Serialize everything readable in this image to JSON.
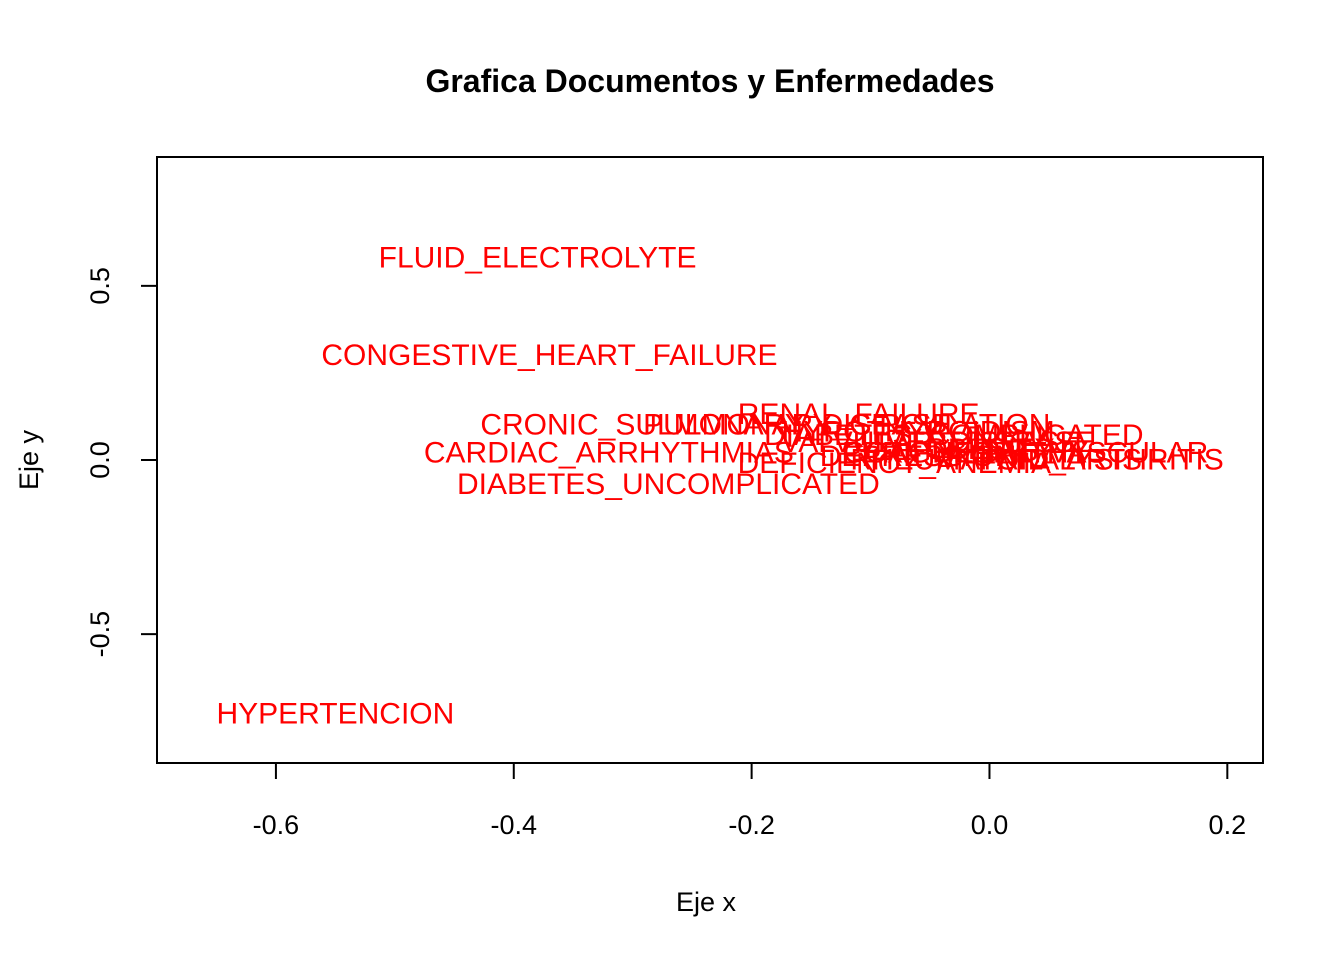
{
  "chart_data": {
    "type": "scatter",
    "title": "Grafica Documentos y Enfermedades",
    "xlabel": "Eje x",
    "ylabel": "Eje y",
    "xlim": [
      -0.7,
      0.23
    ],
    "ylim": [
      -0.87,
      0.87
    ],
    "xticks": [
      -0.6,
      -0.4,
      -0.2,
      0.0,
      0.2
    ],
    "xtick_labels": [
      "-0.6",
      "-0.4",
      "-0.2",
      "0.0",
      "0.2"
    ],
    "yticks": [
      -0.5,
      0.0,
      0.5
    ],
    "ytick_labels": [
      "-0.5",
      "0.0",
      "0.5"
    ],
    "grid": false,
    "label_color": "#ff0000",
    "points": [
      {
        "label": "FLUID_ELECTROLYTE",
        "x": -0.38,
        "y": 0.58
      },
      {
        "label": "CONGESTIVE_HEART_FAILURE",
        "x": -0.37,
        "y": 0.3
      },
      {
        "label": "CRONIC_SULMONARY_DISEASE",
        "x": -0.23,
        "y": 0.1
      },
      {
        "label": "PULMONARY_CIRCULATION",
        "x": -0.12,
        "y": 0.1
      },
      {
        "label": "RENAL_FAILURE",
        "x": -0.11,
        "y": 0.13
      },
      {
        "label": "HYPOTHYROIDISM",
        "x": -0.06,
        "y": 0.08
      },
      {
        "label": "DIABETES_COMPLICATED",
        "x": -0.03,
        "y": 0.07
      },
      {
        "label": "LIVER_DISEASE",
        "x": -0.01,
        "y": 0.05
      },
      {
        "label": "VALVULAR_DISEASE",
        "x": -0.05,
        "y": 0.05
      },
      {
        "label": "PERIPHERAL_VASCULAR",
        "x": 0.03,
        "y": 0.02
      },
      {
        "label": "OBESITY",
        "x": 0.0,
        "y": 0.03
      },
      {
        "label": "COAGULOPATHY",
        "x": -0.02,
        "y": 0.02
      },
      {
        "label": "PARALYSIS",
        "x": 0.06,
        "y": 0.0
      },
      {
        "label": "DEPRESSION",
        "x": -0.06,
        "y": 0.01
      },
      {
        "label": "DEFICIENCY_ANEMIA",
        "x": -0.08,
        "y": -0.01
      },
      {
        "label": "RHEUMATOID_ARTHRITIS",
        "x": 0.04,
        "y": 0.0
      },
      {
        "label": "CARDIAC_ARRHYTHMIAS",
        "x": -0.32,
        "y": 0.02
      },
      {
        "label": "DIABETES_UNCOMPLICATED",
        "x": -0.27,
        "y": -0.07
      },
      {
        "label": "HYPERTENCION",
        "x": -0.55,
        "y": -0.73
      }
    ]
  }
}
